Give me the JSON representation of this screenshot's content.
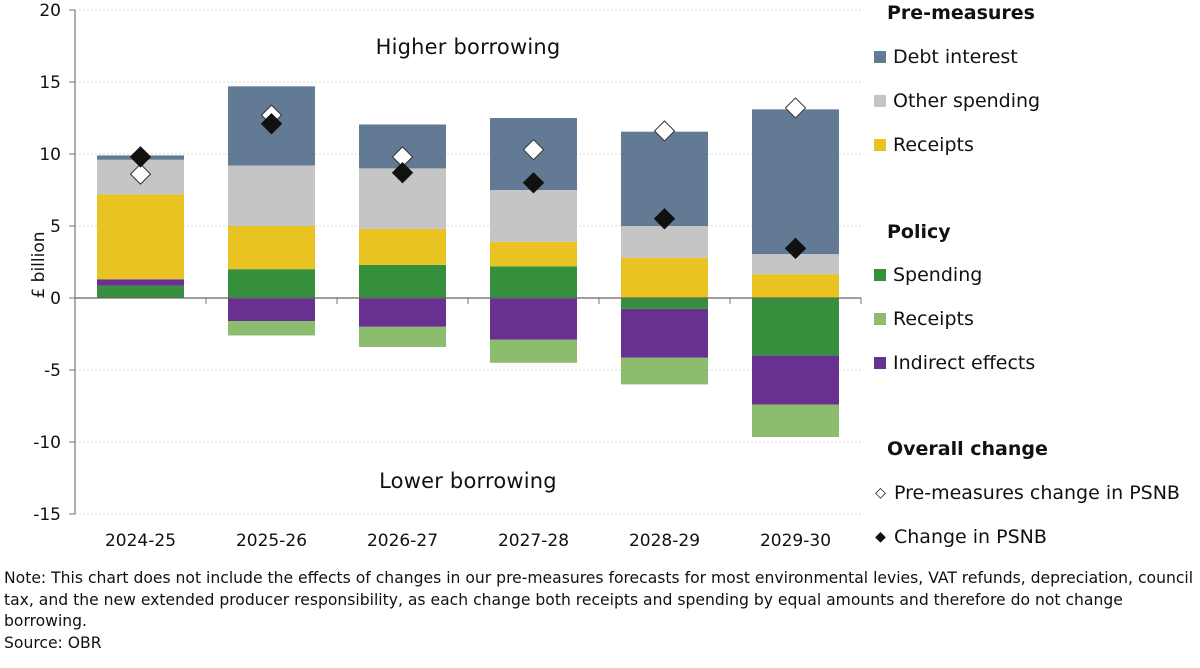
{
  "chart_data": {
    "type": "bar",
    "stacked": true,
    "ylabel": "£ billion",
    "xlabel": "",
    "ylim": [
      -15,
      20
    ],
    "yticks": [
      20,
      15,
      10,
      5,
      0,
      -5,
      -10,
      -15
    ],
    "grid": true,
    "categories": [
      "2024-25",
      "2025-26",
      "2026-27",
      "2027-28",
      "2028-29",
      "2029-30"
    ],
    "series": [
      {
        "name": "Spending",
        "group": "Policy",
        "color": "#368f3d",
        "values": [
          0.85,
          2.0,
          2.3,
          2.2,
          -0.75,
          -4.0
        ]
      },
      {
        "name": "Indirect effects",
        "group": "Policy",
        "color": "#68318f",
        "values": [
          0.45,
          -1.6,
          -2.0,
          -2.9,
          -3.4,
          -3.4
        ]
      },
      {
        "name": "Receipts",
        "group": "Policy",
        "color": "#8cbd6e",
        "values": [
          0.0,
          -1.0,
          -1.4,
          -1.6,
          -1.85,
          -2.25
        ]
      },
      {
        "name": "Receipts",
        "group": "Pre-measures",
        "color": "#e9c322",
        "values": [
          5.9,
          3.0,
          2.5,
          1.7,
          2.8,
          1.65
        ]
      },
      {
        "name": "Other spending",
        "group": "Pre-measures",
        "color": "#c5c5c5",
        "values": [
          2.4,
          4.2,
          4.2,
          3.6,
          2.2,
          1.4
        ]
      },
      {
        "name": "Debt interest",
        "group": "Pre-measures",
        "color": "#637a94",
        "values": [
          0.3,
          5.5,
          3.05,
          5.0,
          6.55,
          10.05
        ]
      }
    ],
    "markers": [
      {
        "name": "Pre-measures change in PSNB",
        "style": "open-diamond",
        "values": [
          8.6,
          12.7,
          9.8,
          10.3,
          11.6,
          13.2
        ]
      },
      {
        "name": "Change in PSNB",
        "style": "filled-diamond",
        "values": [
          9.8,
          12.1,
          8.7,
          8.0,
          5.5,
          3.45
        ]
      }
    ],
    "annotations": [
      "Higher borrowing",
      "Lower borrowing"
    ],
    "legend_position": "right"
  },
  "legend": {
    "groups": [
      {
        "title": "Pre-measures",
        "items": [
          {
            "label": "Debt interest",
            "color": "#637a94"
          },
          {
            "label": "Other spending",
            "color": "#c5c5c5"
          },
          {
            "label": "Receipts",
            "color": "#e9c322"
          }
        ]
      },
      {
        "title": "Policy",
        "items": [
          {
            "label": "Spending",
            "color": "#368f3d"
          },
          {
            "label": "Receipts",
            "color": "#8cbd6e"
          },
          {
            "label": "Indirect effects",
            "color": "#68318f"
          }
        ]
      },
      {
        "title": "Overall change",
        "items": [
          {
            "label": "Pre-measures change in PSNB",
            "symbol": "◇"
          },
          {
            "label": "Change in PSNB",
            "symbol": "◆"
          }
        ]
      }
    ]
  },
  "note": {
    "text": "Note: This chart does not include the effects of changes in our pre-measures forecasts for most environmental levies, VAT refunds, depreciation, council tax, and the new extended producer responsibility, as each change both receipts and spending by equal amounts and therefore do not change borrowing.",
    "source": "Source: OBR"
  }
}
